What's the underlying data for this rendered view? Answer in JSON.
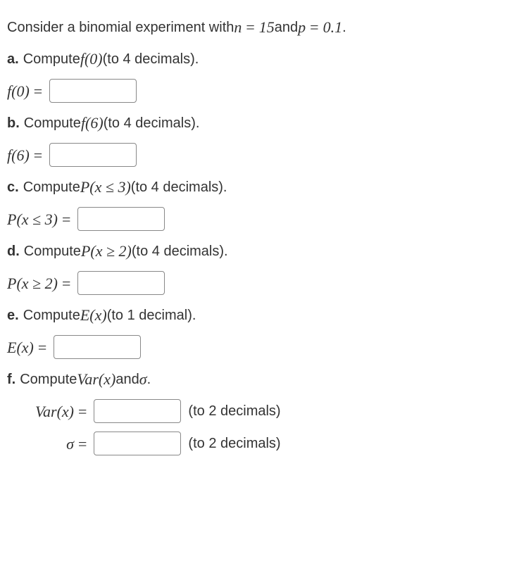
{
  "intro": {
    "prefix": "Consider a binomial experiment with ",
    "n_sym": "n",
    "eq1": " = ",
    "n_val": "15",
    "mid": " and ",
    "p_sym": "p",
    "eq2": " = ",
    "p_val": "0.1",
    "suffix": "."
  },
  "parts": {
    "a": {
      "letter": "a.",
      "text_before": " Compute ",
      "expr": "f(0)",
      "text_after": " (to 4 decimals).",
      "ans_label": "f(0)",
      "eq": " ="
    },
    "b": {
      "letter": "b.",
      "text_before": " Compute ",
      "expr": "f(6)",
      "text_after": " (to 4 decimals).",
      "ans_label": "f(6)",
      "eq": " ="
    },
    "c": {
      "letter": "c.",
      "text_before": " Compute ",
      "expr": "P(x ≤ 3)",
      "text_after": " (to 4 decimals).",
      "ans_label": "P(x ≤ 3)",
      "eq": " ="
    },
    "d": {
      "letter": "d.",
      "text_before": " Compute ",
      "expr": "P(x ≥ 2)",
      "text_after": " (to 4 decimals).",
      "ans_label": "P(x ≥ 2)",
      "eq": " ="
    },
    "e": {
      "letter": "e.",
      "text_before": " Compute ",
      "expr": "E(x)",
      "text_after": " (to 1 decimal).",
      "ans_label": "E(x)",
      "eq": " ="
    },
    "f": {
      "letter": "f.",
      "text_before": " Compute ",
      "expr1": "Var(x)",
      "mid": " and ",
      "expr2": "σ",
      "suffix": ".",
      "var_label": "Var(x)",
      "sigma_label": "σ",
      "eq": " =",
      "note": "(to 2 decimals)"
    }
  },
  "style": {
    "text_color": "#333333",
    "input_border": "#888888",
    "body_fontsize": 20,
    "math_fontsize": 22
  }
}
